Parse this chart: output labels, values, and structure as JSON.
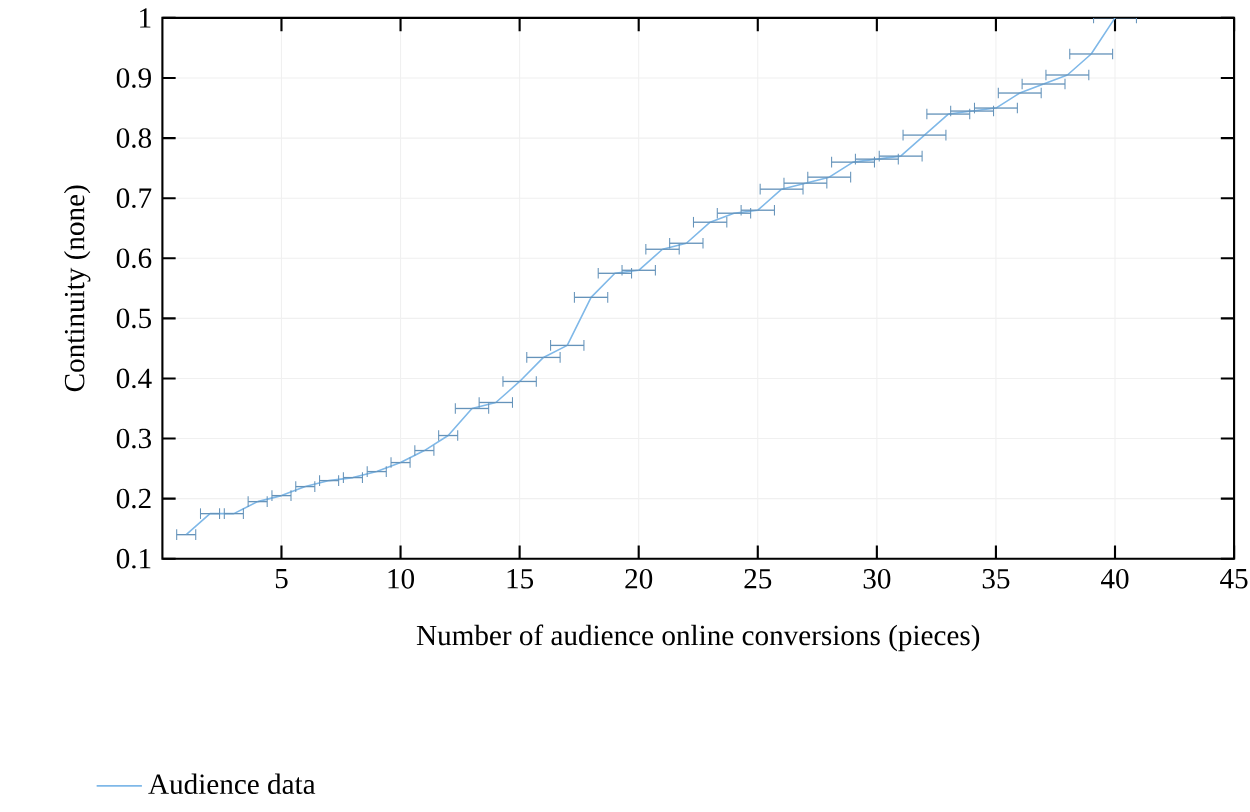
{
  "chart_data": {
    "type": "line",
    "xlabel": "Number of audience online conversions (pieces)",
    "ylabel": "Continuity (none)",
    "x": [
      1,
      2,
      3,
      4,
      5,
      6,
      7,
      8,
      9,
      10,
      11,
      12,
      13,
      14,
      15,
      16,
      17,
      18,
      19,
      20,
      21,
      22,
      23,
      24,
      25,
      26,
      27,
      28,
      29,
      30,
      31,
      32,
      33,
      34,
      35,
      36,
      37,
      38,
      39,
      40
    ],
    "series": [
      {
        "name": "Audience data",
        "color": "#7fb8e8",
        "values": [
          0.14,
          0.175,
          0.175,
          0.195,
          0.205,
          0.22,
          0.23,
          0.235,
          0.245,
          0.26,
          0.28,
          0.305,
          0.35,
          0.36,
          0.395,
          0.435,
          0.455,
          0.535,
          0.575,
          0.58,
          0.615,
          0.625,
          0.66,
          0.675,
          0.68,
          0.715,
          0.725,
          0.735,
          0.76,
          0.765,
          0.77,
          0.805,
          0.84,
          0.845,
          0.85,
          0.875,
          0.89,
          0.905,
          0.94,
          1.0
        ],
        "xerrors": [
          0.4,
          0.4,
          0.4,
          0.4,
          0.4,
          0.4,
          0.4,
          0.4,
          0.4,
          0.4,
          0.4,
          0.4,
          0.7,
          0.7,
          0.7,
          0.7,
          0.7,
          0.7,
          0.7,
          0.7,
          0.7,
          0.7,
          0.7,
          0.7,
          0.7,
          0.9,
          0.9,
          0.9,
          0.9,
          0.9,
          0.9,
          0.9,
          0.9,
          0.9,
          0.9,
          0.9,
          0.9,
          0.9,
          0.9,
          0.9
        ]
      }
    ],
    "xlim": [
      0,
      45
    ],
    "ylim": [
      0.1,
      1
    ],
    "xticks": [
      5,
      10,
      15,
      20,
      25,
      30,
      35,
      40,
      45
    ],
    "yticks": [
      0.1,
      0.2,
      0.3,
      0.4,
      0.5,
      0.6,
      0.7,
      0.8,
      0.9,
      1
    ],
    "grid": true,
    "legend": "bottom left",
    "marker": "none",
    "line_style": "solid"
  }
}
